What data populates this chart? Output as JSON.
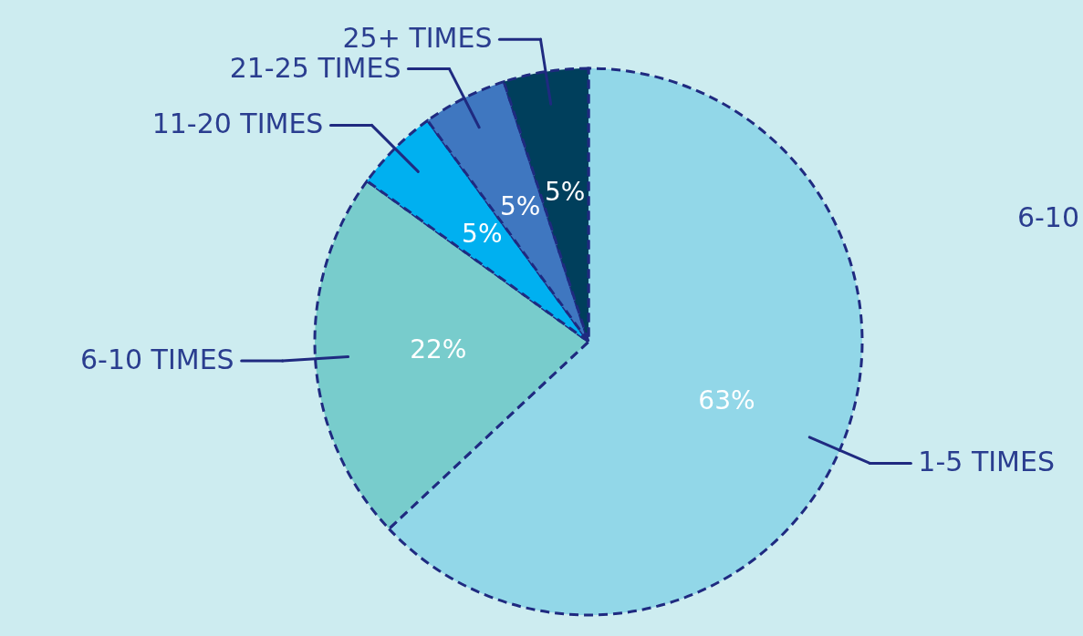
{
  "chart_data": {
    "type": "pie",
    "categories": [
      "1-5 TIMES",
      "6-10 TIMES",
      "11-20 TIMES",
      "21-25 TIMES",
      "25+ TIMES"
    ],
    "values": [
      63,
      22,
      5,
      5,
      5
    ],
    "value_labels": [
      "63%",
      "22%",
      "5%",
      "5%",
      "5%"
    ],
    "colors": [
      "#92d7e8",
      "#78cccc",
      "#00b0f0",
      "#3f77c0",
      "#003f5c"
    ],
    "line_style": "dashed",
    "annotations": [
      "6-10"
    ]
  }
}
